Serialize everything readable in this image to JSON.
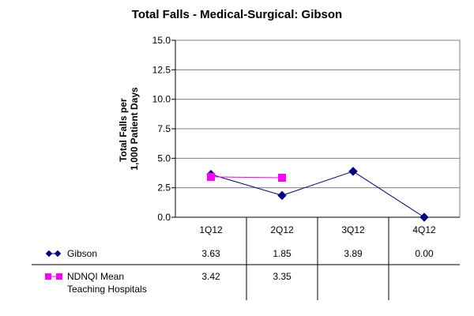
{
  "chart_data": {
    "type": "line",
    "title": "Total Falls - Medical-Surgical: Gibson",
    "ylabel_lines": [
      "Total Falls per",
      "1,000 Patient Days"
    ],
    "xlabel": "",
    "categories": [
      "1Q12",
      "2Q12",
      "3Q12",
      "4Q12"
    ],
    "ylim": [
      0,
      15
    ],
    "yticks": [
      "0.0",
      "2.5",
      "5.0",
      "7.5",
      "10.0",
      "12.5",
      "15.0"
    ],
    "grid": true,
    "legend": "data-table",
    "series": [
      {
        "name": "Gibson",
        "values": [
          3.63,
          1.85,
          3.89,
          0.0
        ],
        "labels": [
          "3.63",
          "1.85",
          "3.89",
          "0.00"
        ],
        "color": "#000080",
        "marker": "diamond"
      },
      {
        "name_lines": [
          "NDNQI Mean",
          "Teaching Hospitals"
        ],
        "values": [
          3.42,
          3.35,
          null,
          null
        ],
        "labels": [
          "3.42",
          "3.35",
          "",
          ""
        ],
        "color": "#ff00ff",
        "marker": "square"
      }
    ]
  }
}
